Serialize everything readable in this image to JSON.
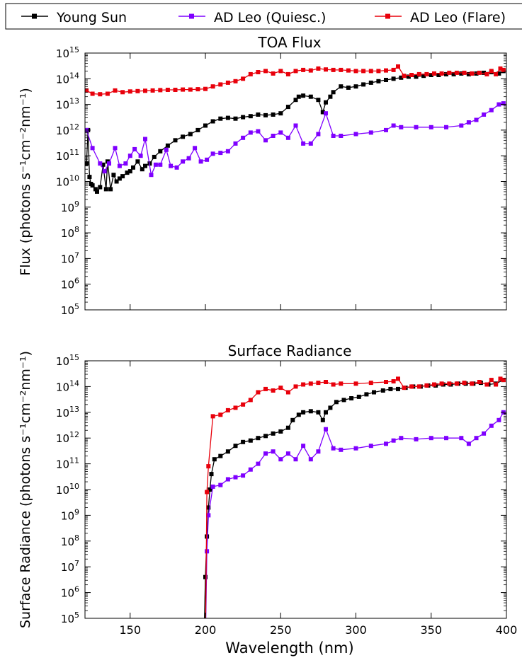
{
  "legend": {
    "items": [
      {
        "label": "Young Sun",
        "color": "#000000"
      },
      {
        "label": "AD Leo (Quiesc.)",
        "color": "#7f00ff"
      },
      {
        "label": "AD Leo (Flare)",
        "color": "#e8000b"
      }
    ]
  },
  "xlabel": "Wavelength (nm)",
  "chart_data": [
    {
      "type": "line",
      "title": "TOA Flux",
      "ylabel": "Flux (photons s⁻¹cm⁻²nm⁻¹)",
      "xlabel": "",
      "xlim": [
        120,
        400
      ],
      "ylim": [
        100000.0,
        1000000000000000.0
      ],
      "yscale": "log",
      "x_ticks": [
        150,
        200,
        250,
        300,
        350,
        400
      ],
      "x_tick_labels_shown": false,
      "y_ticks": [
        "10^5",
        "10^6",
        "10^7",
        "10^8",
        "10^9",
        "10^10",
        "10^11",
        "10^12",
        "10^13",
        "10^14",
        "10^15"
      ],
      "grid": false,
      "series": [
        {
          "name": "Young Sun",
          "color": "#000000",
          "x": [
            121,
            122,
            123,
            124,
            125,
            127,
            128,
            130,
            132,
            134,
            135,
            137,
            139,
            141,
            143,
            145,
            148,
            150,
            152,
            155,
            158,
            160,
            163,
            166,
            170,
            175,
            180,
            185,
            190,
            195,
            200,
            205,
            210,
            215,
            220,
            225,
            230,
            235,
            240,
            245,
            250,
            255,
            260,
            262,
            265,
            270,
            275,
            278,
            280,
            283,
            285,
            290,
            295,
            300,
            305,
            310,
            315,
            320,
            325,
            330,
            335,
            340,
            345,
            350,
            355,
            360,
            365,
            370,
            375,
            380,
            385,
            390,
            395,
            398
          ],
          "y": [
            50000000000.0,
            1000000000000.0,
            15000000000.0,
            8000000000.0,
            7000000000.0,
            5000000000.0,
            4000000000.0,
            6000000000.0,
            45000000000.0,
            5000000000.0,
            60000000000.0,
            5000000000.0,
            18000000000.0,
            10000000000.0,
            13000000000.0,
            16000000000.0,
            22000000000.0,
            25000000000.0,
            35000000000.0,
            60000000000.0,
            30000000000.0,
            40000000000.0,
            50000000000.0,
            90000000000.0,
            150000000000.0,
            250000000000.0,
            400000000000.0,
            550000000000.0,
            700000000000.0,
            1000000000000.0,
            1500000000000.0,
            2200000000000.0,
            2800000000000.0,
            3000000000000.0,
            2800000000000.0,
            3200000000000.0,
            3500000000000.0,
            4000000000000.0,
            3800000000000.0,
            4000000000000.0,
            4500000000000.0,
            8000000000000.0,
            15000000000000.0,
            20000000000000.0,
            22000000000000.0,
            20000000000000.0,
            15000000000000.0,
            5000000000000.0,
            12000000000000.0,
            20000000000000.0,
            30000000000000.0,
            50000000000000.0,
            45000000000000.0,
            50000000000000.0,
            60000000000000.0,
            70000000000000.0,
            80000000000000.0,
            90000000000000.0,
            100000000000000.0,
            110000000000000.0,
            120000000000000.0,
            120000000000000.0,
            130000000000000.0,
            140000000000000.0,
            140000000000000.0,
            150000000000000.0,
            150000000000000.0,
            160000000000000.0,
            150000000000000.0,
            160000000000000.0,
            170000000000000.0,
            180000000000000.0,
            160000000000000.0,
            200000000000000.0
          ]
        },
        {
          "name": "AD Leo (Quiesc.)",
          "color": "#7f00ff",
          "x": [
            121,
            125,
            130,
            133,
            136,
            140,
            143,
            147,
            150,
            153,
            157,
            160,
            164,
            167,
            170,
            174,
            177,
            181,
            185,
            189,
            193,
            197,
            201,
            205,
            210,
            215,
            220,
            225,
            230,
            235,
            240,
            245,
            250,
            255,
            260,
            265,
            270,
            275,
            280,
            285,
            290,
            300,
            310,
            320,
            325,
            330,
            340,
            350,
            360,
            370,
            375,
            380,
            385,
            390,
            395,
            398
          ],
          "y": [
            1000000000000.0,
            200000000000.0,
            50000000000.0,
            25000000000.0,
            50000000000.0,
            200000000000.0,
            40000000000.0,
            50000000000.0,
            100000000000.0,
            180000000000.0,
            100000000000.0,
            450000000000.0,
            18000000000.0,
            45000000000.0,
            45000000000.0,
            170000000000.0,
            40000000000.0,
            35000000000.0,
            60000000000.0,
            80000000000.0,
            200000000000.0,
            60000000000.0,
            70000000000.0,
            120000000000.0,
            130000000000.0,
            150000000000.0,
            300000000000.0,
            500000000000.0,
            800000000000.0,
            900000000000.0,
            400000000000.0,
            600000000000.0,
            800000000000.0,
            500000000000.0,
            1500000000000.0,
            300000000000.0,
            300000000000.0,
            700000000000.0,
            4500000000000.0,
            600000000000.0,
            600000000000.0,
            700000000000.0,
            800000000000.0,
            1000000000000.0,
            1500000000000.0,
            1300000000000.0,
            1300000000000.0,
            1300000000000.0,
            1300000000000.0,
            1500000000000.0,
            2000000000000.0,
            2500000000000.0,
            4000000000000.0,
            6000000000000.0,
            10000000000000.0,
            11000000000000.0
          ]
        },
        {
          "name": "AD Leo (Flare)",
          "color": "#e8000b",
          "x": [
            121,
            125,
            130,
            135,
            140,
            145,
            150,
            155,
            160,
            165,
            170,
            175,
            180,
            185,
            190,
            195,
            200,
            205,
            210,
            215,
            220,
            225,
            230,
            235,
            240,
            245,
            250,
            255,
            260,
            265,
            270,
            275,
            280,
            285,
            290,
            295,
            300,
            305,
            310,
            315,
            320,
            325,
            328,
            332,
            337,
            342,
            347,
            352,
            357,
            362,
            367,
            372,
            377,
            382,
            387,
            390,
            393,
            396,
            398
          ],
          "y": [
            35000000000000.0,
            26000000000000.0,
            25000000000000.0,
            26000000000000.0,
            35000000000000.0,
            30000000000000.0,
            32000000000000.0,
            33000000000000.0,
            34000000000000.0,
            35000000000000.0,
            36000000000000.0,
            37000000000000.0,
            37000000000000.0,
            38000000000000.0,
            38000000000000.0,
            39000000000000.0,
            40000000000000.0,
            50000000000000.0,
            60000000000000.0,
            70000000000000.0,
            80000000000000.0,
            100000000000000.0,
            150000000000000.0,
            180000000000000.0,
            200000000000000.0,
            160000000000000.0,
            200000000000000.0,
            150000000000000.0,
            200000000000000.0,
            220000000000000.0,
            210000000000000.0,
            250000000000000.0,
            230000000000000.0,
            220000000000000.0,
            220000000000000.0,
            210000000000000.0,
            200000000000000.0,
            200000000000000.0,
            200000000000000.0,
            200000000000000.0,
            210000000000000.0,
            220000000000000.0,
            300000000000000.0,
            130000000000000.0,
            140000000000000.0,
            150000000000000.0,
            150000000000000.0,
            160000000000000.0,
            160000000000000.0,
            170000000000000.0,
            170000000000000.0,
            170000000000000.0,
            160000000000000.0,
            170000000000000.0,
            150000000000000.0,
            200000000000000.0,
            150000000000000.0,
            250000000000000.0,
            220000000000000.0
          ]
        }
      ]
    },
    {
      "type": "line",
      "title": "Surface Radiance",
      "ylabel": "Surface Radiance (photons s⁻¹cm⁻²nm⁻¹)",
      "xlabel": "Wavelength (nm)",
      "xlim": [
        120,
        400
      ],
      "ylim": [
        100000.0,
        1000000000000000.0
      ],
      "yscale": "log",
      "x_ticks": [
        150,
        200,
        250,
        300,
        350,
        400
      ],
      "x_tick_labels_shown": true,
      "y_ticks": [
        "10^5",
        "10^6",
        "10^7",
        "10^8",
        "10^9",
        "10^10",
        "10^11",
        "10^12",
        "10^13",
        "10^14",
        "10^15"
      ],
      "grid": false,
      "series": [
        {
          "name": "Young Sun",
          "color": "#000000",
          "x": [
            199,
            200,
            201,
            202,
            203,
            204,
            206,
            210,
            215,
            220,
            225,
            230,
            235,
            240,
            245,
            250,
            255,
            258,
            262,
            265,
            270,
            275,
            278,
            280,
            283,
            287,
            292,
            297,
            302,
            307,
            312,
            318,
            323,
            328,
            333,
            338,
            343,
            348,
            353,
            358,
            363,
            368,
            373,
            378,
            383,
            388,
            393,
            398
          ],
          "y": [
            10000.0,
            4000000.0,
            150000000.0,
            2000000000.0,
            10000000000.0,
            40000000000.0,
            150000000000.0,
            200000000000.0,
            300000000000.0,
            500000000000.0,
            700000000000.0,
            800000000000.0,
            1000000000000.0,
            1200000000000.0,
            1500000000000.0,
            1800000000000.0,
            2500000000000.0,
            5000000000000.0,
            8000000000000.0,
            10000000000000.0,
            11000000000000.0,
            10000000000000.0,
            5000000000000.0,
            10000000000000.0,
            15000000000000.0,
            25000000000000.0,
            30000000000000.0,
            35000000000000.0,
            40000000000000.0,
            50000000000000.0,
            60000000000000.0,
            70000000000000.0,
            80000000000000.0,
            80000000000000.0,
            90000000000000.0,
            100000000000000.0,
            100000000000000.0,
            110000000000000.0,
            110000000000000.0,
            120000000000000.0,
            120000000000000.0,
            130000000000000.0,
            130000000000000.0,
            130000000000000.0,
            140000000000000.0,
            120000000000000.0,
            130000000000000.0,
            180000000000000.0
          ]
        },
        {
          "name": "AD Leo (Quiesc.)",
          "color": "#7f00ff",
          "x": [
            200,
            201,
            202,
            205,
            210,
            215,
            220,
            225,
            230,
            235,
            240,
            245,
            250,
            255,
            260,
            265,
            270,
            275,
            280,
            285,
            290,
            300,
            310,
            320,
            325,
            330,
            340,
            350,
            360,
            370,
            375,
            380,
            385,
            390,
            395,
            398
          ],
          "y": [
            10000.0,
            40000000.0,
            1000000000.0,
            13000000000.0,
            15000000000.0,
            25000000000.0,
            30000000000.0,
            35000000000.0,
            60000000000.0,
            100000000000.0,
            250000000000.0,
            300000000000.0,
            150000000000.0,
            250000000000.0,
            150000000000.0,
            500000000000.0,
            150000000000.0,
            300000000000.0,
            2200000000000.0,
            400000000000.0,
            350000000000.0,
            400000000000.0,
            500000000000.0,
            600000000000.0,
            800000000000.0,
            1000000000000.0,
            900000000000.0,
            1000000000000.0,
            1000000000000.0,
            1000000000000.0,
            600000000000.0,
            1000000000000.0,
            1500000000000.0,
            3000000000000.0,
            5000000000000.0,
            10000000000000.0
          ]
        },
        {
          "name": "AD Leo (Flare)",
          "color": "#e8000b",
          "x": [
            200,
            201,
            202,
            205,
            210,
            215,
            220,
            225,
            230,
            235,
            240,
            245,
            250,
            255,
            260,
            265,
            270,
            275,
            280,
            285,
            290,
            300,
            310,
            320,
            325,
            328,
            332,
            337,
            342,
            347,
            352,
            357,
            362,
            367,
            372,
            377,
            382,
            387,
            390,
            393,
            396,
            398
          ],
          "y": [
            10000.0,
            8000000000.0,
            80000000000.0,
            7000000000000.0,
            8000000000000.0,
            12000000000000.0,
            15000000000000.0,
            20000000000000.0,
            30000000000000.0,
            60000000000000.0,
            80000000000000.0,
            70000000000000.0,
            90000000000000.0,
            60000000000000.0,
            100000000000000.0,
            120000000000000.0,
            130000000000000.0,
            140000000000000.0,
            150000000000000.0,
            120000000000000.0,
            130000000000000.0,
            130000000000000.0,
            140000000000000.0,
            150000000000000.0,
            160000000000000.0,
            200000000000000.0,
            90000000000000.0,
            100000000000000.0,
            100000000000000.0,
            110000000000000.0,
            120000000000000.0,
            130000000000000.0,
            130000000000000.0,
            130000000000000.0,
            140000000000000.0,
            130000000000000.0,
            150000000000000.0,
            120000000000000.0,
            180000000000000.0,
            120000000000000.0,
            200000000000000.0,
            180000000000000.0
          ]
        }
      ]
    }
  ]
}
